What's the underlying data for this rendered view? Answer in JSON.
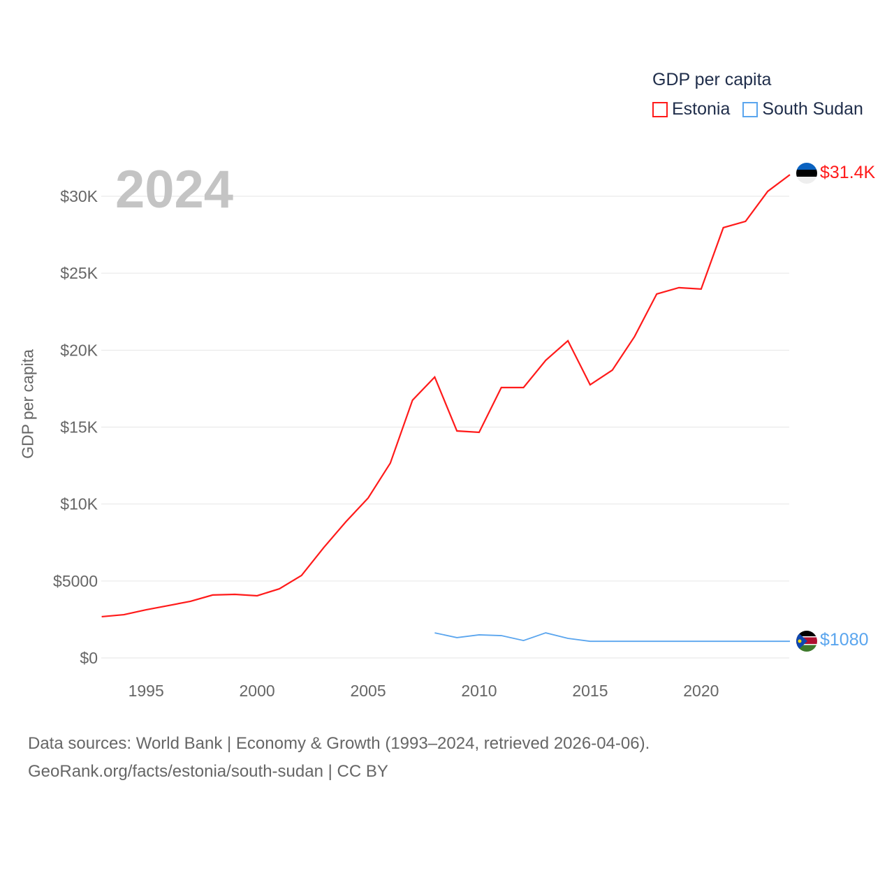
{
  "chart_data": {
    "type": "line",
    "title": "GDP per capita",
    "ylabel": "GDP per capita",
    "xlabel": "",
    "current_year_label": "2024",
    "xlim": [
      1993,
      2024
    ],
    "ylim": [
      0,
      33000
    ],
    "x_ticks": [
      1995,
      2000,
      2005,
      2010,
      2015,
      2020
    ],
    "y_ticks": [
      0,
      5000,
      10000,
      15000,
      20000,
      25000,
      30000
    ],
    "y_tick_labels": [
      "$0",
      "$5000",
      "$10K",
      "$15K",
      "$20K",
      "$25K",
      "$30K"
    ],
    "grid": true,
    "legend_position": "top-right",
    "series": [
      {
        "name": "Estonia",
        "color": "#ff1a1a",
        "end_label": "$31.4K",
        "x": [
          1993,
          1994,
          1995,
          1996,
          1997,
          1998,
          1999,
          2000,
          2001,
          2002,
          2003,
          2004,
          2005,
          2006,
          2007,
          2008,
          2009,
          2010,
          2011,
          2012,
          2013,
          2014,
          2015,
          2016,
          2017,
          2018,
          2019,
          2020,
          2021,
          2022,
          2023,
          2024
        ],
        "values": [
          2680,
          2810,
          3130,
          3400,
          3680,
          4090,
          4130,
          4040,
          4490,
          5360,
          7170,
          8850,
          10390,
          12660,
          16750,
          18250,
          14750,
          14660,
          17570,
          17570,
          19340,
          20610,
          17750,
          18700,
          20880,
          23650,
          24060,
          23970,
          27960,
          28370,
          30320,
          31400
        ]
      },
      {
        "name": "South Sudan",
        "color": "#5aa5ee",
        "end_label": "$1080",
        "x": [
          2008,
          2009,
          2010,
          2011,
          2012,
          2013,
          2014,
          2015,
          2016,
          2017,
          2018,
          2019,
          2020,
          2021,
          2022,
          2023,
          2024
        ],
        "values": [
          1630,
          1320,
          1500,
          1450,
          1130,
          1630,
          1270,
          1080,
          1080,
          1080,
          1080,
          1080,
          1080,
          1080,
          1080,
          1080,
          1080
        ]
      }
    ]
  },
  "source": {
    "line1": "Data sources: World Bank | Economy & Growth (1993–2024, retrieved 2026-04-06).",
    "line2": "GeoRank.org/facts/estonia/south-sudan | CC BY"
  }
}
